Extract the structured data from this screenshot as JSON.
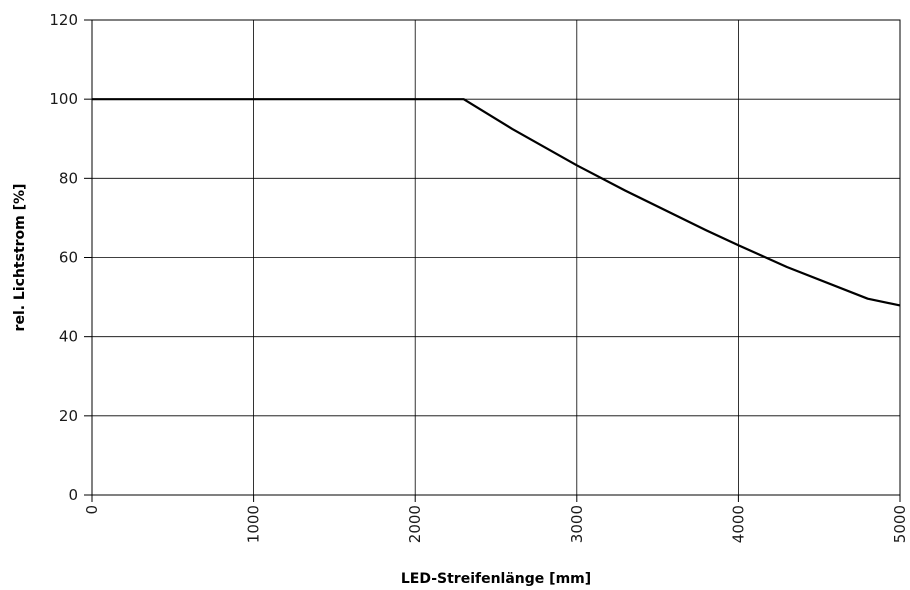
{
  "chart_data": {
    "type": "line",
    "title": "",
    "xlabel": "LED-Streifenlänge [mm]",
    "ylabel": "rel. Lichtstrom [%]",
    "xlim": [
      0,
      5000
    ],
    "ylim": [
      0,
      120
    ],
    "x_ticks": [
      0,
      1000,
      2000,
      3000,
      4000,
      5000
    ],
    "y_ticks": [
      0,
      20,
      40,
      60,
      80,
      100,
      120
    ],
    "x_tick_labels": [
      "0",
      "1000",
      "2000",
      "3000",
      "4000",
      "5000"
    ],
    "y_tick_labels": [
      "0",
      "20",
      "40",
      "60",
      "80",
      "100",
      "120"
    ],
    "grid": true,
    "series": [
      {
        "x": [
          0,
          2300,
          2600,
          3000,
          3300,
          3800,
          4000,
          4300,
          4800,
          5000
        ],
        "y": [
          100,
          100,
          92.5,
          83.3,
          76.9,
          66.9,
          63.1,
          57.6,
          49.6,
          47.9
        ],
        "color": "#000000"
      }
    ]
  }
}
